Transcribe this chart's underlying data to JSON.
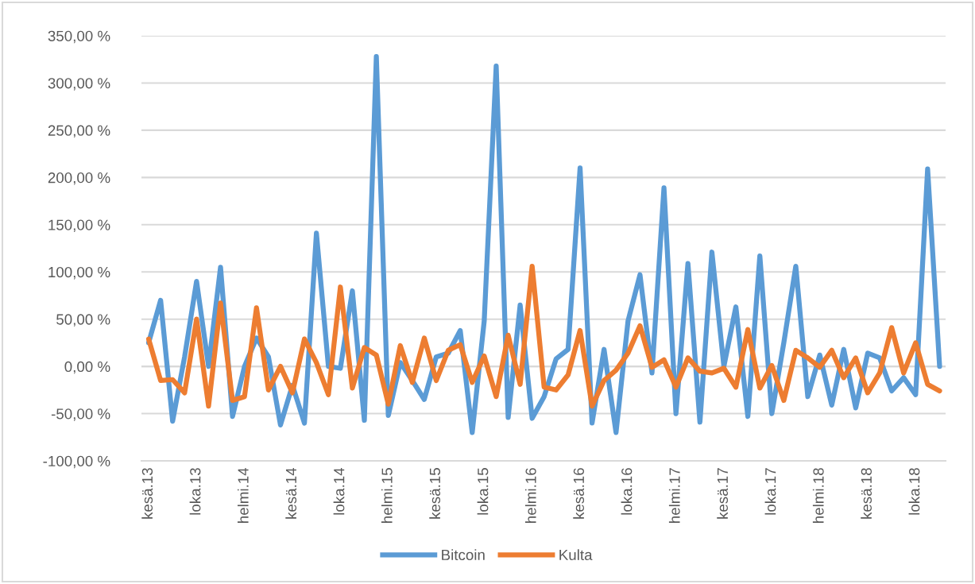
{
  "chart_data": {
    "type": "line",
    "categories": [
      "kesä.13",
      null,
      null,
      null,
      "loka.13",
      null,
      null,
      null,
      "helmi.14",
      null,
      null,
      null,
      "kesä.14",
      null,
      null,
      null,
      "loka.14",
      null,
      null,
      null,
      "helmi.15",
      null,
      null,
      null,
      "kesä.15",
      null,
      null,
      null,
      "loka.15",
      null,
      null,
      null,
      "helmi.16",
      null,
      null,
      null,
      "kesä.16",
      null,
      null,
      null,
      "loka.16",
      null,
      null,
      null,
      "helmi.17",
      null,
      null,
      null,
      "kesä.17",
      null,
      null,
      null,
      "loka.17",
      null,
      null,
      null,
      "helmi.18",
      null,
      null,
      null,
      "kesä.18",
      null,
      null,
      null,
      "loka.18",
      null,
      null
    ],
    "series": [
      {
        "name": "Bitcoin",
        "color": "#5b9bd5",
        "values": [
          25,
          70,
          -58,
          10,
          90,
          0,
          105,
          -53,
          0,
          30,
          10,
          -62,
          -20,
          -60,
          141,
          0,
          -2,
          80,
          -57,
          328,
          -52,
          4,
          -15,
          -35,
          10,
          14,
          38,
          -70,
          48,
          318,
          -54,
          65,
          -55,
          -32,
          8,
          18,
          210,
          -60,
          18,
          -70,
          48,
          97,
          -7,
          189,
          -50,
          109,
          -59,
          121,
          0,
          63,
          -53,
          117,
          -50,
          25,
          106,
          -32,
          12,
          -41,
          18,
          -44,
          14,
          9,
          -26,
          -12,
          -30,
          209,
          0
        ]
      },
      {
        "name": "Kulta",
        "color": "#ed7d31",
        "values": [
          29,
          -15,
          -14,
          -28,
          50,
          -42,
          67,
          -36,
          -32,
          62,
          -25,
          0,
          -28,
          29,
          4,
          -30,
          84,
          -23,
          20,
          12,
          -40,
          22,
          -17,
          30,
          -15,
          17,
          23,
          -17,
          11,
          -32,
          33,
          -19,
          106,
          -22,
          -25,
          -9,
          38,
          -42,
          -15,
          -4,
          14,
          43,
          -1,
          7,
          -22,
          9,
          -5,
          -7,
          -2,
          -22,
          39,
          -23,
          1,
          -36,
          17,
          9,
          -1,
          17,
          -12,
          9,
          -28,
          -7,
          41,
          -7,
          25,
          -19,
          -26
        ]
      }
    ],
    "ylim": [
      -100,
      350
    ],
    "yticks": [
      {
        "value": -100,
        "label": "-100,00 %"
      },
      {
        "value": -50,
        "label": "-50,00 %"
      },
      {
        "value": 0,
        "label": "0,00 %"
      },
      {
        "value": 50,
        "label": "50,00 %"
      },
      {
        "value": 100,
        "label": "100,00 %"
      },
      {
        "value": 150,
        "label": "150,00 %"
      },
      {
        "value": 200,
        "label": "200,00 %"
      },
      {
        "value": 250,
        "label": "250,00 %"
      },
      {
        "value": 300,
        "label": "300,00 %"
      },
      {
        "value": 350,
        "label": "350,00 %"
      }
    ],
    "grid": "y",
    "legend": "bottom",
    "marker": "none",
    "line_style": "solid"
  }
}
